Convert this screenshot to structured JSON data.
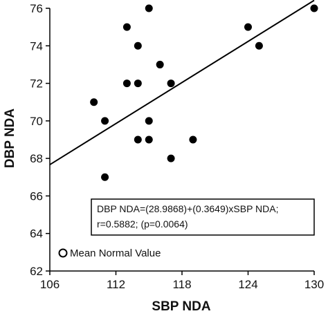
{
  "chart_data": {
    "type": "scatter",
    "xlabel": "SBP NDA",
    "ylabel": "DBP NDA",
    "xlim": [
      106,
      130
    ],
    "ylim": [
      62,
      76
    ],
    "x_ticks": [
      106,
      112,
      118,
      124,
      130
    ],
    "y_ticks": [
      62,
      64,
      66,
      68,
      70,
      72,
      74,
      76
    ],
    "grid": false,
    "points": [
      {
        "x": 110,
        "y": 71
      },
      {
        "x": 111,
        "y": 70
      },
      {
        "x": 111,
        "y": 67
      },
      {
        "x": 113,
        "y": 75
      },
      {
        "x": 113,
        "y": 72
      },
      {
        "x": 114,
        "y": 74
      },
      {
        "x": 114,
        "y": 72
      },
      {
        "x": 114,
        "y": 69
      },
      {
        "x": 115,
        "y": 76
      },
      {
        "x": 115,
        "y": 70
      },
      {
        "x": 115,
        "y": 69
      },
      {
        "x": 116,
        "y": 73
      },
      {
        "x": 117,
        "y": 72
      },
      {
        "x": 117,
        "y": 68
      },
      {
        "x": 119,
        "y": 69
      },
      {
        "x": 124,
        "y": 75
      },
      {
        "x": 125,
        "y": 74
      },
      {
        "x": 130,
        "y": 76
      }
    ],
    "regression": {
      "intercept": 28.9868,
      "slope": 0.3649,
      "x_range": [
        106,
        130
      ]
    },
    "annotation": {
      "line1": "DBP NDA=(28.9868)+(0.3649)xSBP NDA;",
      "line2": "r=0.5882; (p=0.0064)"
    },
    "legend": {
      "label": "Mean Normal Value",
      "marker": "open-circle",
      "placement": "bottom-left"
    }
  }
}
